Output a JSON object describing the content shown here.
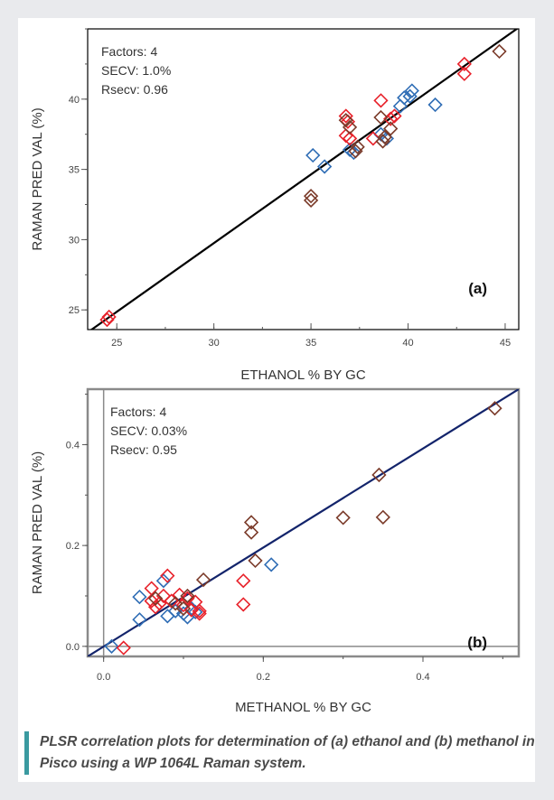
{
  "caption": "PLSR correlation plots for determination of (a) ethanol and (b) methanol in Pisco using a WP 1064L Raman system.",
  "colors": {
    "blue": "#2f6db5",
    "red": "#e8212a",
    "brown": "#7b3b2a",
    "fit_a": "#000000",
    "fit_b": "#13246b"
  },
  "chart_data": [
    {
      "type": "scatter",
      "panel_label": "(a)",
      "xlabel": "ETHANOL % BY GC",
      "ylabel": "RAMAN PRED VAL (%)",
      "xlim": [
        23.5,
        45.7
      ],
      "ylim": [
        23.6,
        45.0
      ],
      "xticks": [
        25,
        30,
        35,
        40,
        45
      ],
      "yticks": [
        25,
        30,
        35,
        40
      ],
      "stats": [
        "Factors: 4",
        "SECV: 1.0%",
        "Rsecv: 0.96"
      ],
      "fit_line": [
        [
          23.5,
          23.4
        ],
        [
          45.7,
          45.1
        ]
      ],
      "series": [
        {
          "color": "blue",
          "points": [
            [
              35.1,
              36.0
            ],
            [
              35.7,
              35.2
            ],
            [
              37.0,
              36.4
            ],
            [
              37.2,
              36.2
            ],
            [
              38.6,
              37.5
            ],
            [
              38.9,
              37.2
            ],
            [
              39.6,
              39.5
            ],
            [
              39.8,
              40.1
            ],
            [
              40.1,
              40.2
            ],
            [
              40.2,
              40.6
            ],
            [
              41.4,
              39.6
            ]
          ]
        },
        {
          "color": "red",
          "points": [
            [
              24.5,
              24.3
            ],
            [
              24.6,
              24.5
            ],
            [
              36.8,
              38.8
            ],
            [
              36.9,
              38.4
            ],
            [
              36.8,
              37.4
            ],
            [
              37.0,
              37.2
            ],
            [
              38.2,
              37.2
            ],
            [
              38.6,
              39.9
            ],
            [
              39.1,
              38.6
            ],
            [
              39.3,
              38.8
            ],
            [
              42.9,
              42.5
            ],
            [
              42.9,
              41.8
            ]
          ]
        },
        {
          "color": "brown",
          "points": [
            [
              35.0,
              33.1
            ],
            [
              35.0,
              32.8
            ],
            [
              36.8,
              38.5
            ],
            [
              37.0,
              38.0
            ],
            [
              37.3,
              36.3
            ],
            [
              37.4,
              36.6
            ],
            [
              38.6,
              38.7
            ],
            [
              38.7,
              37.0
            ],
            [
              38.8,
              37.3
            ],
            [
              39.1,
              37.9
            ],
            [
              44.7,
              43.4
            ]
          ]
        }
      ]
    },
    {
      "type": "scatter",
      "panel_label": "(b)",
      "xlabel": "METHANOL % BY GC",
      "ylabel": "RAMAN PRED VAL (%)",
      "xlim": [
        -0.02,
        0.52
      ],
      "ylim": [
        -0.02,
        0.51
      ],
      "xticks": [
        0.0,
        0.2,
        0.4
      ],
      "yticks": [
        0.0,
        0.2,
        0.4
      ],
      "stats": [
        "Factors: 4",
        "SECV: 0.03%",
        "Rsecv: 0.95"
      ],
      "fit_line": [
        [
          -0.02,
          -0.02
        ],
        [
          0.52,
          0.51
        ]
      ],
      "series": [
        {
          "color": "blue",
          "points": [
            [
              0.01,
              0.0
            ],
            [
              0.045,
              0.098
            ],
            [
              0.045,
              0.053
            ],
            [
              0.075,
              0.13
            ],
            [
              0.08,
              0.06
            ],
            [
              0.09,
              0.07
            ],
            [
              0.1,
              0.065
            ],
            [
              0.105,
              0.058
            ],
            [
              0.11,
              0.075
            ],
            [
              0.115,
              0.068
            ],
            [
              0.21,
              0.162
            ]
          ]
        },
        {
          "color": "red",
          "points": [
            [
              0.025,
              -0.003
            ],
            [
              0.06,
              0.115
            ],
            [
              0.06,
              0.09
            ],
            [
              0.065,
              0.078
            ],
            [
              0.07,
              0.085
            ],
            [
              0.075,
              0.1
            ],
            [
              0.08,
              0.14
            ],
            [
              0.085,
              0.09
            ],
            [
              0.095,
              0.102
            ],
            [
              0.1,
              0.082
            ],
            [
              0.105,
              0.095
            ],
            [
              0.11,
              0.072
            ],
            [
              0.115,
              0.088
            ],
            [
              0.12,
              0.07
            ],
            [
              0.12,
              0.065
            ],
            [
              0.175,
              0.13
            ],
            [
              0.175,
              0.083
            ]
          ]
        },
        {
          "color": "brown",
          "points": [
            [
              0.065,
              0.095
            ],
            [
              0.09,
              0.085
            ],
            [
              0.1,
              0.075
            ],
            [
              0.105,
              0.1
            ],
            [
              0.125,
              0.132
            ],
            [
              0.185,
              0.246
            ],
            [
              0.185,
              0.226
            ],
            [
              0.19,
              0.17
            ],
            [
              0.3,
              0.255
            ],
            [
              0.345,
              0.34
            ],
            [
              0.35,
              0.256
            ],
            [
              0.49,
              0.472
            ]
          ]
        }
      ]
    }
  ]
}
